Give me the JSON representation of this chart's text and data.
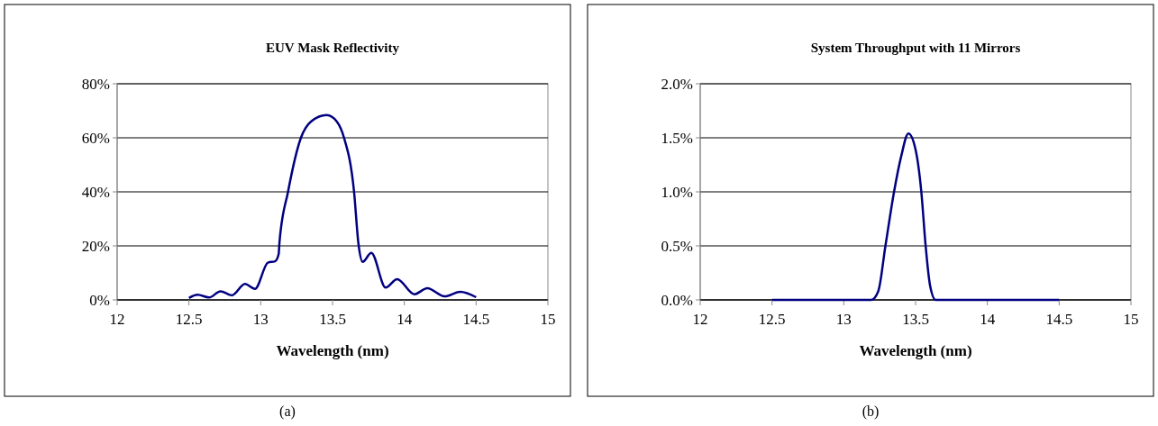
{
  "chart_data": [
    {
      "type": "line",
      "title": "EUV Mask Reflectivity",
      "xlabel": "Wavelength (nm)",
      "annotations": [
        "(a)"
      ],
      "xlim": [
        12,
        15
      ],
      "xticks": [
        12,
        12.5,
        13,
        13.5,
        14,
        14.5,
        15
      ],
      "ylim": [
        0,
        80
      ],
      "yticks": [
        {
          "value": 0,
          "label": "0%"
        },
        {
          "value": 20,
          "label": "20%"
        },
        {
          "value": 40,
          "label": "40%"
        },
        {
          "value": 60,
          "label": "60%"
        },
        {
          "value": 80,
          "label": "80%"
        }
      ],
      "grid": "y",
      "line_style": "solid",
      "series": [
        {
          "color": "#000080",
          "x": [
            12.5,
            12.56,
            12.64,
            12.72,
            12.8,
            12.89,
            12.96,
            13.05,
            13.1,
            13.125,
            13.13,
            13.19,
            13.28,
            13.35,
            13.46,
            13.53,
            13.58,
            13.65,
            13.68,
            13.71,
            13.77,
            13.87,
            13.95,
            14.07,
            14.16,
            14.28,
            14.39,
            14.5
          ],
          "values": [
            0.7,
            1.9,
            0.9,
            3.2,
            1.7,
            5.9,
            4.1,
            13.8,
            14.3,
            17,
            21,
            40,
            60,
            66,
            68.4,
            66,
            60,
            40,
            21,
            14.1,
            17.4,
            4.6,
            7.7,
            2.1,
            4.3,
            1.3,
            3,
            1
          ]
        }
      ]
    },
    {
      "type": "line",
      "title": "System Throughput with 11 Mirrors",
      "xlabel": "Wavelength (nm)",
      "annotations": [
        "(b)"
      ],
      "xlim": [
        12,
        15
      ],
      "xticks": [
        12,
        12.5,
        13,
        13.5,
        14,
        14.5,
        15
      ],
      "ylim": [
        0,
        2
      ],
      "yticks": [
        {
          "value": 0,
          "label": "0.0%"
        },
        {
          "value": 0.5,
          "label": "0.5%"
        },
        {
          "value": 1,
          "label": "1.0%"
        },
        {
          "value": 1.5,
          "label": "1.5%"
        },
        {
          "value": 2,
          "label": "2.0%"
        }
      ],
      "grid": "y",
      "line_style": "solid",
      "series": [
        {
          "color": "#000080",
          "x": [
            12.5,
            13,
            13.19,
            13.24,
            13.29,
            13.35,
            13.4,
            13.45,
            13.5,
            13.54,
            13.57,
            13.6,
            13.64,
            14,
            14.5
          ],
          "values": [
            0,
            0,
            0,
            0.08,
            0.5,
            1,
            1.33,
            1.54,
            1.39,
            1,
            0.5,
            0.14,
            0,
            0,
            0
          ]
        }
      ]
    }
  ]
}
